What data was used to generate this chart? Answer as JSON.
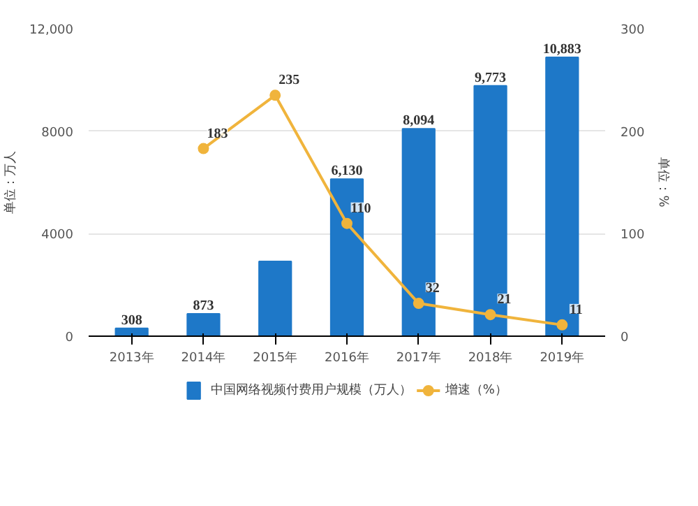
{
  "chart_data": {
    "type": "bar",
    "categories": [
      "2013年",
      "2014年",
      "2015年",
      "2016年",
      "2017年",
      "2018年",
      "2019年"
    ],
    "ylabel": "单位：万人",
    "y2label": "单位：%",
    "series": [
      {
        "name": "中国网络视频付费用户规模（万人）",
        "color": "#1e78c8",
        "values": [
          308,
          873,
          2920,
          6130,
          8094,
          9773,
          10883
        ],
        "value_labels": [
          "308",
          "873",
          null,
          "6,130",
          "8,094",
          "9,773",
          "10,883"
        ]
      },
      {
        "name": "增速（%）",
        "type": "line",
        "axis": "y2",
        "color": "#f0b43c",
        "values": [
          null,
          183,
          235,
          110,
          32,
          21,
          11
        ],
        "value_labels": [
          null,
          "183",
          "235",
          "110",
          "32",
          "21",
          "11"
        ]
      }
    ],
    "ylim": [
      0,
      12000
    ],
    "yticks": [
      0,
      4000,
      8000,
      {
        "value": 12000,
        "label": "12,000"
      }
    ],
    "y2lim": [
      0,
      300
    ],
    "y2ticks": [
      0,
      100,
      200,
      300
    ],
    "grid": "y",
    "legend": "bottom",
    "marker": "circle",
    "line_style": "solid"
  }
}
